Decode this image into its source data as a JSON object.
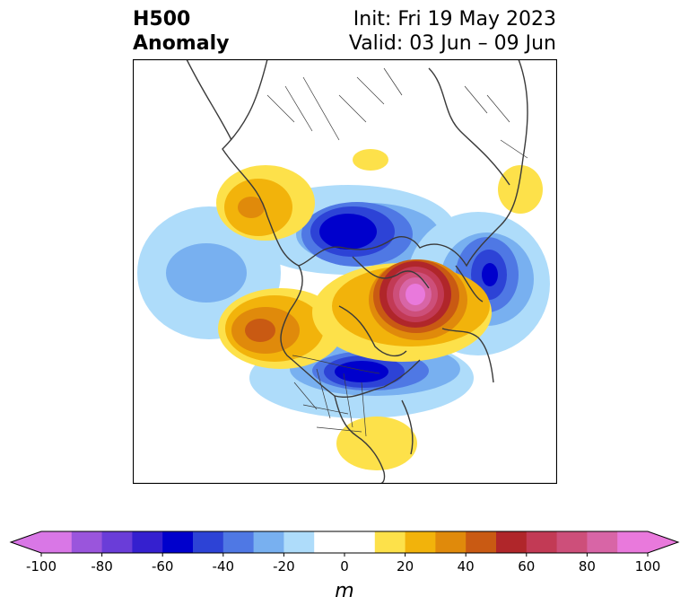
{
  "header": {
    "title_line1": "H500",
    "title_line2": "Anomaly",
    "init": "Init: Fri 19 May 2023",
    "valid": "Valid: 03 Jun – 09 Jun"
  },
  "colorbar": {
    "unit": "m",
    "ticks": [
      "-100",
      "-80",
      "-60",
      "-40",
      "-20",
      "0",
      "20",
      "40",
      "60",
      "80",
      "100"
    ],
    "levels": [
      -100,
      -90,
      -80,
      -70,
      -60,
      -50,
      -40,
      -30,
      -20,
      -10,
      10,
      20,
      30,
      40,
      50,
      60,
      70,
      80,
      90,
      100
    ],
    "colors": [
      "#d977e6",
      "#9a55dc",
      "#6a3dd8",
      "#3520cf",
      "#0000cc",
      "#2d43d6",
      "#4f78e4",
      "#78b0f0",
      "#aedcfa",
      "#ffffff",
      "#fde14a",
      "#f2b30b",
      "#e08a0b",
      "#c95a13",
      "#b0262a",
      "#c23a55",
      "#cd4f7a",
      "#d865a6",
      "#e979dc"
    ],
    "under_color": "#d977e6",
    "over_color": "#e979dc"
  },
  "map": {
    "projection": "polar-stereographic",
    "region": "North America / Arctic",
    "anomaly_centers": [
      {
        "sign": "positive",
        "peak": 90,
        "location": "Greenland / Baffin Bay"
      },
      {
        "sign": "positive",
        "peak": 40,
        "location": "Gulf of Alaska"
      },
      {
        "sign": "positive",
        "peak": 30,
        "location": "Eastern Siberia"
      },
      {
        "sign": "positive",
        "peak": 10,
        "location": "Southeastern US"
      },
      {
        "sign": "positive",
        "peak": 10,
        "location": "Scandinavia"
      },
      {
        "sign": "positive",
        "peak": 10,
        "location": "Arctic Ocean"
      },
      {
        "sign": "negative",
        "peak": -60,
        "location": "East Siberian Sea"
      },
      {
        "sign": "negative",
        "peak": -60,
        "location": "Hudson Bay"
      },
      {
        "sign": "negative",
        "peak": -50,
        "location": "Iceland / Norwegian Sea"
      },
      {
        "sign": "negative",
        "peak": -30,
        "location": "North Pacific"
      }
    ]
  }
}
